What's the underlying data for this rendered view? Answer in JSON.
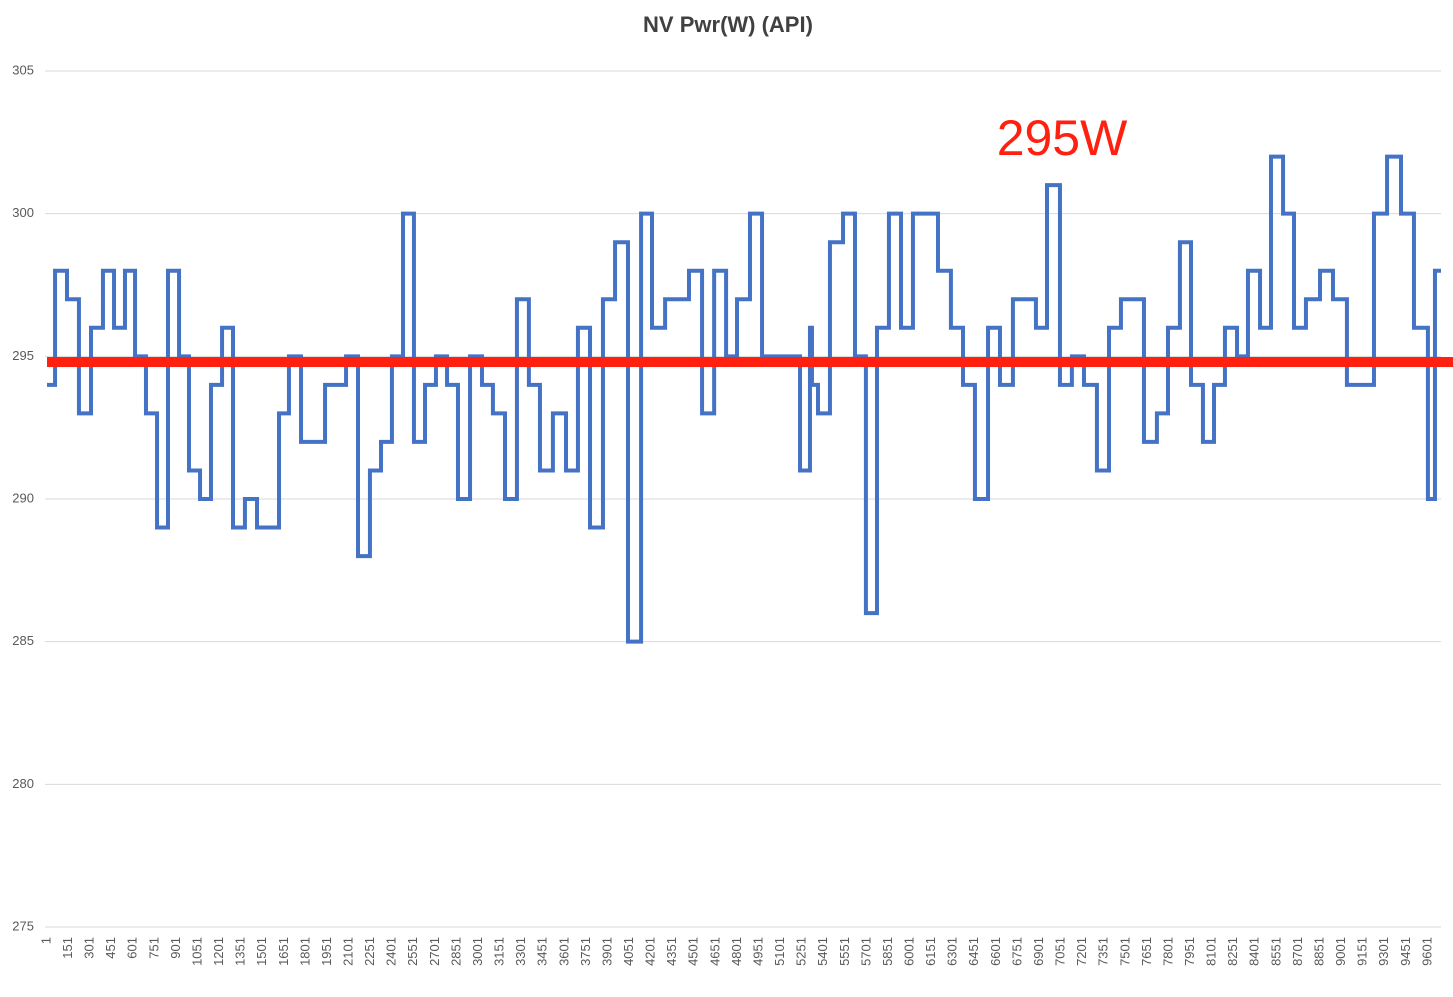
{
  "chart_data": {
    "type": "step",
    "title": "NV Pwr(W) (API)",
    "x": [
      1,
      57,
      140,
      223,
      307,
      390,
      467,
      543,
      613,
      689,
      766,
      842,
      919,
      988,
      1065,
      1141,
      1218,
      1294,
      1377,
      1461,
      1614,
      1683,
      1767,
      1934,
      2080,
      2163,
      2246,
      2323,
      2399,
      2476,
      2552,
      2629,
      2705,
      2782,
      2858,
      2942,
      3025,
      3101,
      3185,
      3268,
      3351,
      3428,
      3518,
      3609,
      3692,
      3776,
      3866,
      3950,
      4040,
      4131,
      4207,
      4298,
      4464,
      4555,
      4639,
      4722,
      4798,
      4888,
      4972,
      5236,
      5305,
      5319,
      5361,
      5444,
      5535,
      5618,
      5694,
      5771,
      5854,
      5938,
      6021,
      6195,
      6285,
      6369,
      6452,
      6543,
      6626,
      6716,
      6876,
      6953,
      7043,
      7126,
      7210,
      7300,
      7384,
      7467,
      7627,
      7717,
      7794,
      7877,
      7954,
      8037,
      8114,
      8190,
      8274,
      8350,
      8434,
      8510,
      8594,
      8670,
      8753,
      8851,
      8941,
      9038,
      9226,
      9317,
      9414,
      9504,
      9601,
      9650
    ],
    "series": [
      {
        "name": "NV Pwr(W) (API)",
        "color": "#4472c4",
        "values": [
          294,
          298,
          297,
          293,
          296,
          298,
          296,
          298,
          295,
          293,
          289,
          298,
          295,
          291,
          290,
          294,
          296,
          289,
          290,
          289,
          293,
          295,
          292,
          294,
          295,
          288,
          291,
          292,
          295,
          300,
          292,
          294,
          295,
          294,
          290,
          295,
          294,
          293,
          290,
          297,
          294,
          291,
          293,
          291,
          296,
          289,
          297,
          299,
          285,
          300,
          296,
          297,
          298,
          293,
          298,
          295,
          297,
          300,
          295,
          291,
          296,
          294,
          293,
          299,
          300,
          295,
          286,
          296,
          300,
          296,
          300,
          298,
          296,
          294,
          290,
          296,
          294,
          297,
          296,
          301,
          294,
          295,
          294,
          291,
          296,
          297,
          292,
          293,
          296,
          299,
          294,
          292,
          294,
          296,
          295,
          298,
          296,
          302,
          300,
          296,
          297,
          298,
          297,
          294,
          300,
          302,
          300,
          296,
          290,
          298
        ]
      }
    ],
    "xlim": [
      1,
      9692
    ],
    "xticks": [
      1,
      151,
      301,
      451,
      601,
      751,
      901,
      1051,
      1201,
      1351,
      1501,
      1651,
      1801,
      1951,
      2101,
      2251,
      2401,
      2551,
      2701,
      2851,
      3001,
      3151,
      3301,
      3451,
      3601,
      3751,
      3901,
      4051,
      4201,
      4351,
      4501,
      4651,
      4801,
      4951,
      5101,
      5251,
      5401,
      5551,
      5701,
      5851,
      6001,
      6151,
      6301,
      6451,
      6601,
      6751,
      6901,
      7051,
      7201,
      7351,
      7501,
      7651,
      7801,
      7951,
      8101,
      8251,
      8401,
      8551,
      8701,
      8851,
      9001,
      9151,
      9301,
      9451,
      9601
    ],
    "ylim": [
      275,
      305
    ],
    "yticks": [
      275,
      280,
      285,
      290,
      295,
      300,
      305
    ],
    "grid": true,
    "reference_line": {
      "value": 294.8,
      "color": "#ff2010"
    },
    "annotation": "295W"
  }
}
